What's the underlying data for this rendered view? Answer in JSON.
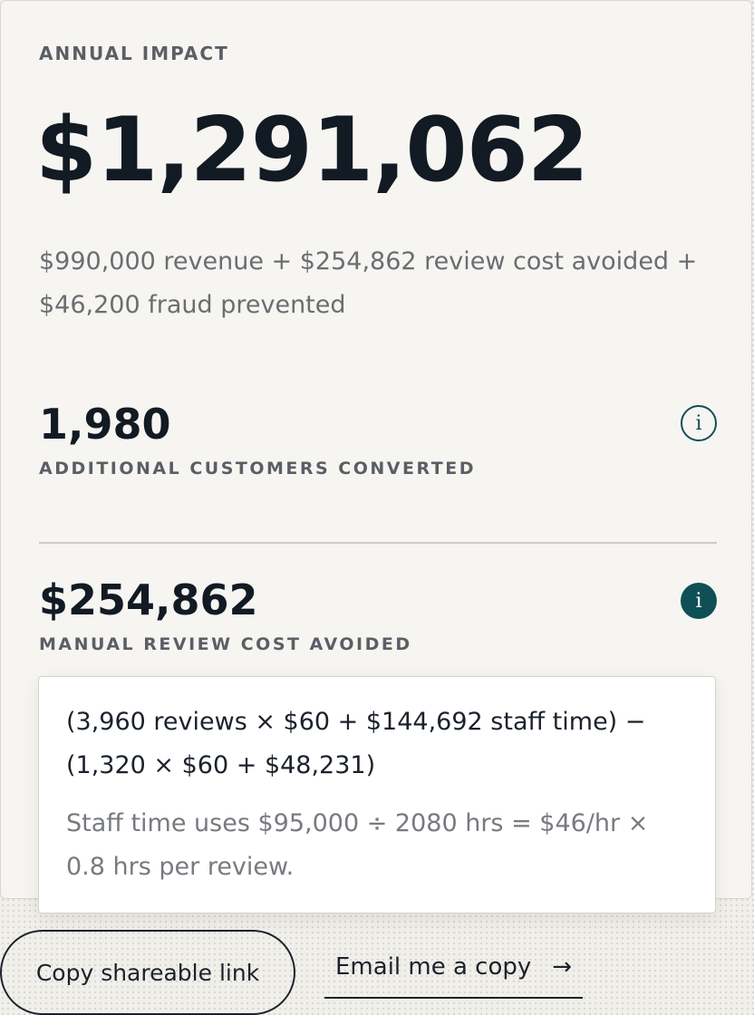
{
  "summary": {
    "eyebrow": "ANNUAL IMPACT",
    "total": "$1,291,062",
    "breakdown": "$990,000 revenue + $254,862 review cost avoided + $46,200 fraud prevented"
  },
  "metrics": [
    {
      "value": "1,980",
      "label": "ADDITIONAL CUSTOMERS CONVERTED",
      "info_icon": "i"
    },
    {
      "value": "$254,862",
      "label": "MANUAL REVIEW COST AVOIDED",
      "info_icon": "i"
    }
  ],
  "tooltip": {
    "formula": "(3,960 reviews × $60 + $144,692 staff time) − (1,320 × $60 + $48,231)",
    "note": "Staff time uses $95,000 ÷ 2080 hrs = $46/hr × 0.8 hrs per review."
  },
  "actions": {
    "copy_link_label": "Copy shareable link",
    "email_label": "Email me a copy",
    "email_arrow": "→"
  },
  "colors": {
    "accent": "#0f5057",
    "text": "#121a24",
    "muted": "#6a6d72"
  }
}
